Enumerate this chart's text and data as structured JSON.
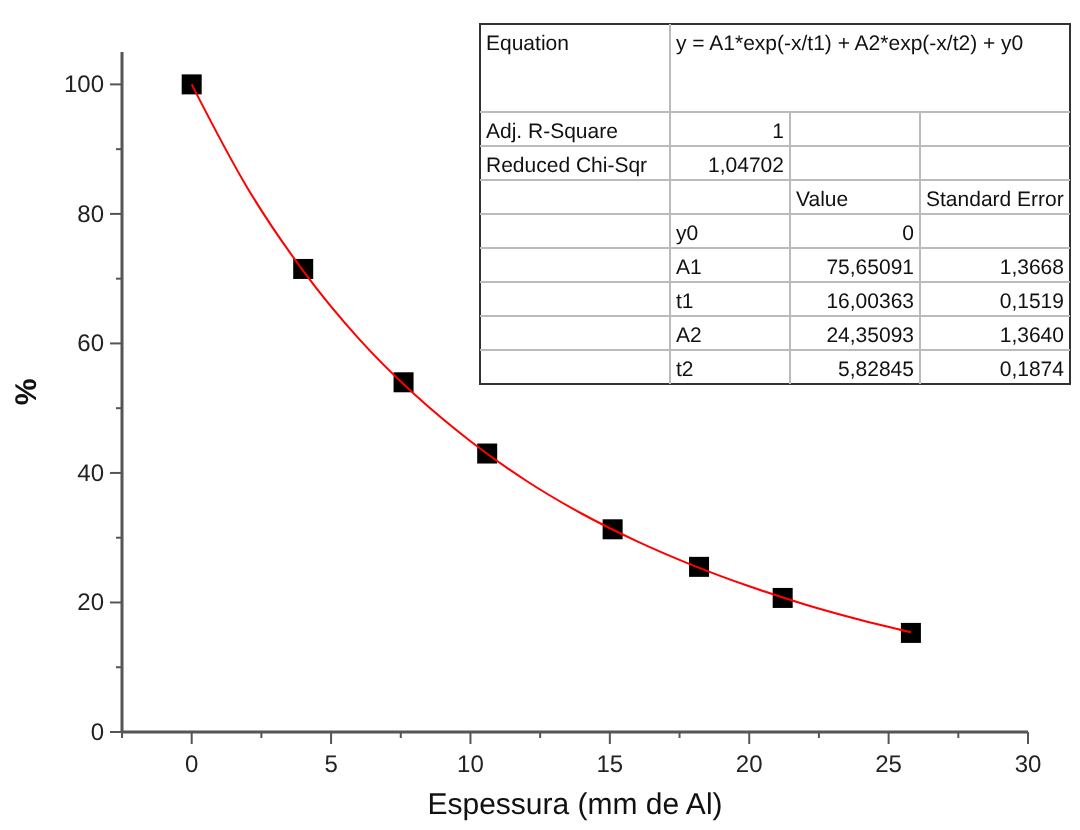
{
  "chart_data": {
    "type": "scatter",
    "xlabel": "Espessura (mm de Al)",
    "ylabel": "%",
    "xlim": [
      -2.5,
      30
    ],
    "ylim": [
      0,
      105
    ],
    "xticks": [
      {
        "value": -2.5,
        "label": null
      },
      0,
      {
        "value": 2.5,
        "label": null
      },
      5,
      {
        "value": 7.5,
        "label": null
      },
      10,
      {
        "value": 12.5,
        "label": null
      },
      15,
      {
        "value": 17.5,
        "label": null
      },
      20,
      {
        "value": 22.5,
        "label": null
      },
      25,
      {
        "value": 27.5,
        "label": null
      },
      30
    ],
    "yticks": [
      0,
      {
        "value": 10,
        "label": null
      },
      20,
      {
        "value": 30,
        "label": null
      },
      40,
      {
        "value": 50,
        "label": null
      },
      60,
      {
        "value": 70,
        "label": null
      },
      80,
      {
        "value": 90,
        "label": null
      },
      100
    ],
    "grid": false,
    "series": [
      {
        "type": "line",
        "color": "#ff0000",
        "marker": "none",
        "line_style": "solid",
        "x": [
          0,
          2,
          4,
          6,
          8,
          10,
          12,
          14,
          16,
          18,
          20,
          22,
          24,
          25.8
        ],
        "values": [
          100,
          84.0,
          71.2,
          60.7,
          52.1,
          44.9,
          38.8,
          33.7,
          29.4,
          25.7,
          22.5,
          19.7,
          17.3,
          15.4
        ]
      },
      {
        "color": "#000000",
        "marker": "square",
        "x": [
          0,
          4,
          7.6,
          10.6,
          15.1,
          18.2,
          21.2,
          25.8
        ],
        "values": [
          100,
          71.5,
          54,
          43,
          31.3,
          25.5,
          20.7,
          15.3
        ]
      }
    ],
    "annotations": [
      "Equation",
      "y = A1*exp(-x/t1) + A2*exp(-x/t2) + y0",
      "Adj. R-Square",
      "1",
      "Reduced Chi-Sqr",
      "1,04702",
      "Value",
      "Standard Error",
      "y0",
      "0",
      "A1",
      "75,65091",
      "1,3668",
      "t1",
      "16,00363",
      "0,1519",
      "A2",
      "24,35093",
      "1,3640",
      "t2",
      "5,82845",
      "0,1874"
    ]
  }
}
